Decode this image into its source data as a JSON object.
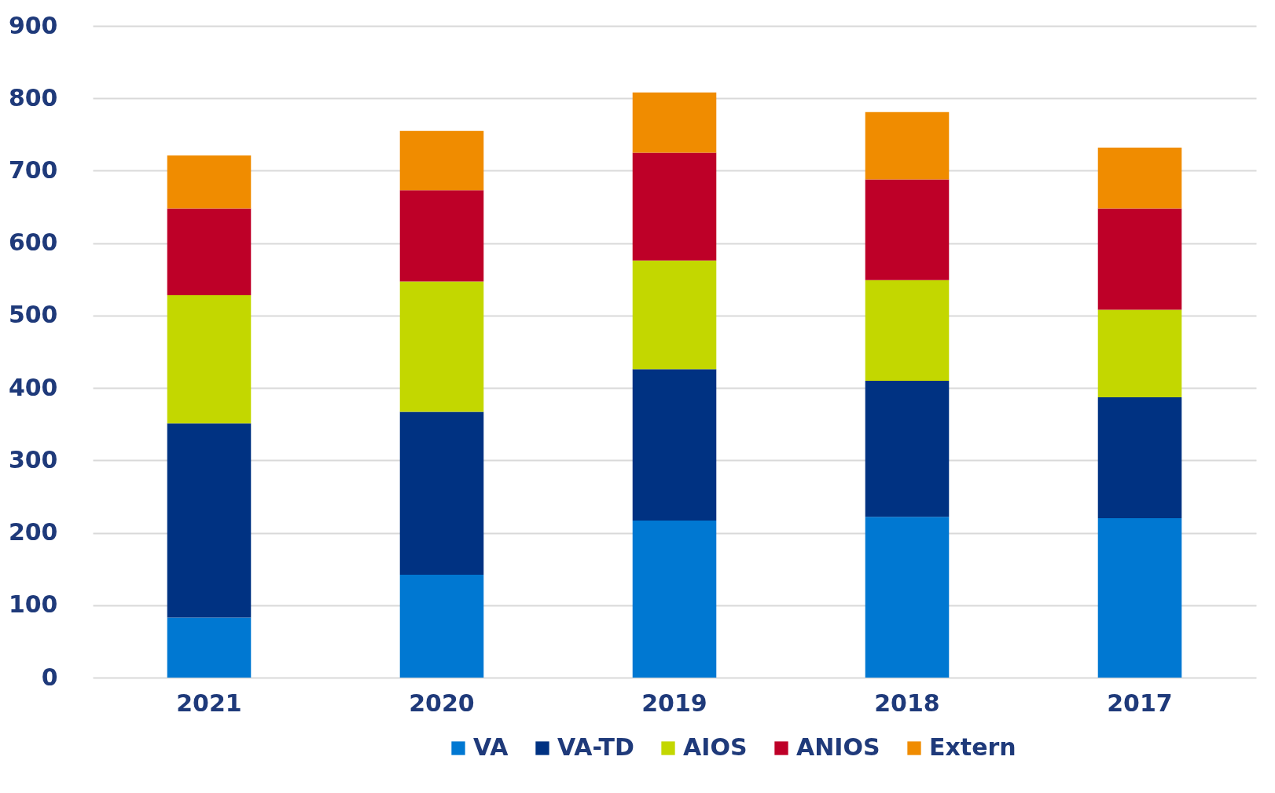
{
  "chart_data": {
    "type": "bar",
    "stacked": true,
    "categories": [
      "2021",
      "2020",
      "2019",
      "2018",
      "2017"
    ],
    "series": [
      {
        "name": "VA",
        "color": "#0078d2",
        "values": [
          83,
          142,
          217,
          222,
          220
        ]
      },
      {
        "name": "VA-TD",
        "color": "#003282",
        "values": [
          268,
          225,
          209,
          188,
          167
        ]
      },
      {
        "name": "AIOS",
        "color": "#c3d700",
        "values": [
          177,
          180,
          150,
          139,
          121
        ]
      },
      {
        "name": "ANIOS",
        "color": "#be0028",
        "values": [
          120,
          126,
          149,
          139,
          140
        ]
      },
      {
        "name": "Extern",
        "color": "#f08c00",
        "values": [
          73,
          82,
          83,
          93,
          84
        ]
      }
    ],
    "ylim": [
      0,
      900
    ],
    "yticks": [
      0,
      100,
      200,
      300,
      400,
      500,
      600,
      700,
      800,
      900
    ],
    "grid": "y",
    "legend": "bottom"
  }
}
